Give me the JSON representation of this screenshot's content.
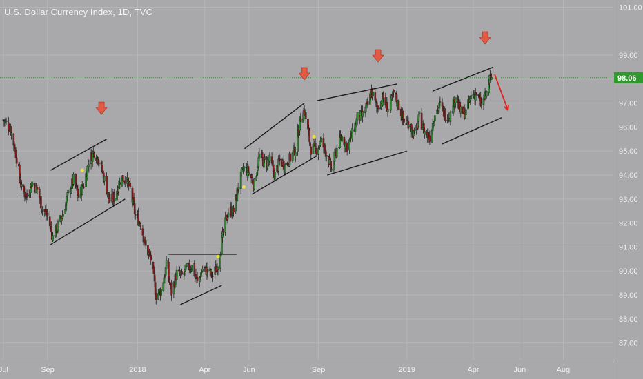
{
  "title": "U.S. Dollar Currency Index, 1D, TVC",
  "colors": {
    "background": "#a9a9ab",
    "grid": "#b6b6b8",
    "up": "#2e8b2e",
    "down": "#8b1a1a",
    "trendline": "#1a1a1a",
    "arrow": "#e05a44",
    "forecast_arrow": "#e02020",
    "current_line": "#2e9a2e",
    "price_tag": "#2e9a2e",
    "marker": "#f0e040"
  },
  "chart_data": {
    "type": "line",
    "title": "U.S. Dollar Currency Index, 1D, TVC",
    "xlabel": "",
    "ylabel": "",
    "ylim": [
      86.3,
      101.3
    ],
    "xlim": [
      "2017-07-01",
      "2019-09-30"
    ],
    "y_ticks": [
      "101.00",
      "99.00",
      "98.00",
      "97.00",
      "96.00",
      "95.00",
      "94.00",
      "93.00",
      "92.00",
      "91.00",
      "90.00",
      "89.00",
      "88.00",
      "87.00"
    ],
    "y_tick_values": [
      101,
      99,
      98,
      97,
      96,
      95,
      94,
      93,
      92,
      91,
      90,
      89,
      88,
      87
    ],
    "x_ticks": [
      {
        "label": "Jul",
        "date": "2017-07-03"
      },
      {
        "label": "Sep",
        "date": "2017-09-01"
      },
      {
        "label": "2018",
        "date": "2018-01-01"
      },
      {
        "label": "Apr",
        "date": "2018-04-02"
      },
      {
        "label": "Jun",
        "date": "2018-06-01"
      },
      {
        "label": "Sep",
        "date": "2018-09-03"
      },
      {
        "label": "2019",
        "date": "2019-01-01"
      },
      {
        "label": "Apr",
        "date": "2019-04-01"
      },
      {
        "label": "Jun",
        "date": "2019-06-03"
      },
      {
        "label": "Aug",
        "date": "2019-08-01"
      }
    ],
    "current_price": 98.06,
    "current_price_label": "98.06",
    "series": [
      {
        "values": [
          [
            "2017-07-03",
            96.3
          ],
          [
            "2017-07-12",
            96.0
          ],
          [
            "2017-07-20",
            94.9
          ],
          [
            "2017-07-28",
            93.4
          ],
          [
            "2017-08-04",
            93.1
          ],
          [
            "2017-08-11",
            93.7
          ],
          [
            "2017-08-18",
            93.4
          ],
          [
            "2017-08-25",
            92.6
          ],
          [
            "2017-09-01",
            92.3
          ],
          [
            "2017-09-08",
            91.4
          ],
          [
            "2017-09-15",
            91.9
          ],
          [
            "2017-09-22",
            92.4
          ],
          [
            "2017-09-29",
            93.2
          ],
          [
            "2017-10-06",
            93.8
          ],
          [
            "2017-10-13",
            93.1
          ],
          [
            "2017-10-20",
            93.6
          ],
          [
            "2017-10-27",
            94.6
          ],
          [
            "2017-11-03",
            95.0
          ],
          [
            "2017-11-10",
            94.6
          ],
          [
            "2017-11-17",
            93.8
          ],
          [
            "2017-11-24",
            92.9
          ],
          [
            "2017-12-01",
            93.1
          ],
          [
            "2017-12-08",
            93.8
          ],
          [
            "2017-12-15",
            93.9
          ],
          [
            "2017-12-22",
            93.4
          ],
          [
            "2017-12-29",
            92.3
          ],
          [
            "2018-01-05",
            92.0
          ],
          [
            "2018-01-12",
            91.0
          ],
          [
            "2018-01-19",
            90.5
          ],
          [
            "2018-01-26",
            89.0
          ],
          [
            "2018-02-02",
            89.2
          ],
          [
            "2018-02-09",
            90.2
          ],
          [
            "2018-02-16",
            89.1
          ],
          [
            "2018-02-23",
            89.9
          ],
          [
            "2018-03-02",
            89.8
          ],
          [
            "2018-03-09",
            90.1
          ],
          [
            "2018-03-16",
            90.2
          ],
          [
            "2018-03-23",
            89.5
          ],
          [
            "2018-03-30",
            90.1
          ],
          [
            "2018-04-06",
            90.0
          ],
          [
            "2018-04-13",
            89.8
          ],
          [
            "2018-04-20",
            90.3
          ],
          [
            "2018-04-27",
            91.6
          ],
          [
            "2018-05-04",
            92.5
          ],
          [
            "2018-05-11",
            92.5
          ],
          [
            "2018-05-18",
            93.6
          ],
          [
            "2018-05-25",
            94.3
          ],
          [
            "2018-06-01",
            94.1
          ],
          [
            "2018-06-08",
            93.6
          ],
          [
            "2018-06-15",
            94.8
          ],
          [
            "2018-06-22",
            94.5
          ],
          [
            "2018-06-29",
            94.6
          ],
          [
            "2018-07-06",
            94.0
          ],
          [
            "2018-07-13",
            94.6
          ],
          [
            "2018-07-20",
            94.4
          ],
          [
            "2018-07-27",
            94.7
          ],
          [
            "2018-08-03",
            95.1
          ],
          [
            "2018-08-10",
            96.4
          ],
          [
            "2018-08-15",
            96.7
          ],
          [
            "2018-08-24",
            95.1
          ],
          [
            "2018-08-31",
            95.1
          ],
          [
            "2018-09-07",
            95.4
          ],
          [
            "2018-09-14",
            94.9
          ],
          [
            "2018-09-21",
            94.2
          ],
          [
            "2018-09-28",
            95.1
          ],
          [
            "2018-10-05",
            95.6
          ],
          [
            "2018-10-12",
            95.2
          ],
          [
            "2018-10-19",
            95.7
          ],
          [
            "2018-10-26",
            96.4
          ],
          [
            "2018-11-02",
            96.5
          ],
          [
            "2018-11-09",
            96.9
          ],
          [
            "2018-11-14",
            97.5
          ],
          [
            "2018-11-21",
            96.8
          ],
          [
            "2018-11-30",
            97.2
          ],
          [
            "2018-12-07",
            96.7
          ],
          [
            "2018-12-14",
            97.4
          ],
          [
            "2018-12-21",
            96.9
          ],
          [
            "2018-12-28",
            96.2
          ],
          [
            "2019-01-04",
            96.2
          ],
          [
            "2019-01-11",
            95.6
          ],
          [
            "2019-01-18",
            96.4
          ],
          [
            "2019-01-25",
            95.8
          ],
          [
            "2019-02-01",
            95.6
          ],
          [
            "2019-02-08",
            96.6
          ],
          [
            "2019-02-15",
            96.9
          ],
          [
            "2019-02-22",
            96.5
          ],
          [
            "2019-03-01",
            96.5
          ],
          [
            "2019-03-08",
            97.3
          ],
          [
            "2019-03-15",
            96.6
          ],
          [
            "2019-03-22",
            96.6
          ],
          [
            "2019-03-29",
            97.3
          ],
          [
            "2019-04-05",
            97.4
          ],
          [
            "2019-04-12",
            96.9
          ],
          [
            "2019-04-19",
            97.4
          ],
          [
            "2019-04-23",
            98.0
          ],
          [
            "2019-04-26",
            98.06
          ]
        ]
      }
    ],
    "trendlines": [
      [
        [
          "2017-09-05",
          94.2
        ],
        [
          "2017-11-20",
          95.5
        ]
      ],
      [
        [
          "2017-09-05",
          91.1
        ],
        [
          "2017-12-15",
          93.0
        ]
      ],
      [
        [
          "2018-02-12",
          90.7
        ],
        [
          "2018-05-15",
          90.7
        ]
      ],
      [
        [
          "2018-02-28",
          88.6
        ],
        [
          "2018-04-25",
          89.4
        ]
      ],
      [
        [
          "2018-05-26",
          95.1
        ],
        [
          "2018-08-15",
          97.0
        ]
      ],
      [
        [
          "2018-06-05",
          93.2
        ],
        [
          "2018-09-01",
          94.8
        ]
      ],
      [
        [
          "2018-09-01",
          97.1
        ],
        [
          "2018-12-19",
          97.8
        ]
      ],
      [
        [
          "2018-09-15",
          94.0
        ],
        [
          "2019-01-01",
          95.0
        ]
      ],
      [
        [
          "2019-02-05",
          97.5
        ],
        [
          "2019-04-28",
          98.5
        ]
      ],
      [
        [
          "2019-02-18",
          95.3
        ],
        [
          "2019-05-10",
          96.4
        ]
      ]
    ],
    "annotation_arrows": [
      "2017-11-13",
      "2018-08-15",
      "2018-11-23",
      "2019-04-17"
    ],
    "yellow_markers": [
      [
        "2017-10-18",
        94.2
      ],
      [
        "2018-04-20",
        90.6
      ],
      [
        "2018-05-25",
        93.5
      ],
      [
        "2018-08-28",
        95.6
      ]
    ],
    "forecast_arrow": [
      [
        "2019-04-30",
        98.2
      ],
      [
        "2019-05-18",
        96.7
      ]
    ]
  }
}
